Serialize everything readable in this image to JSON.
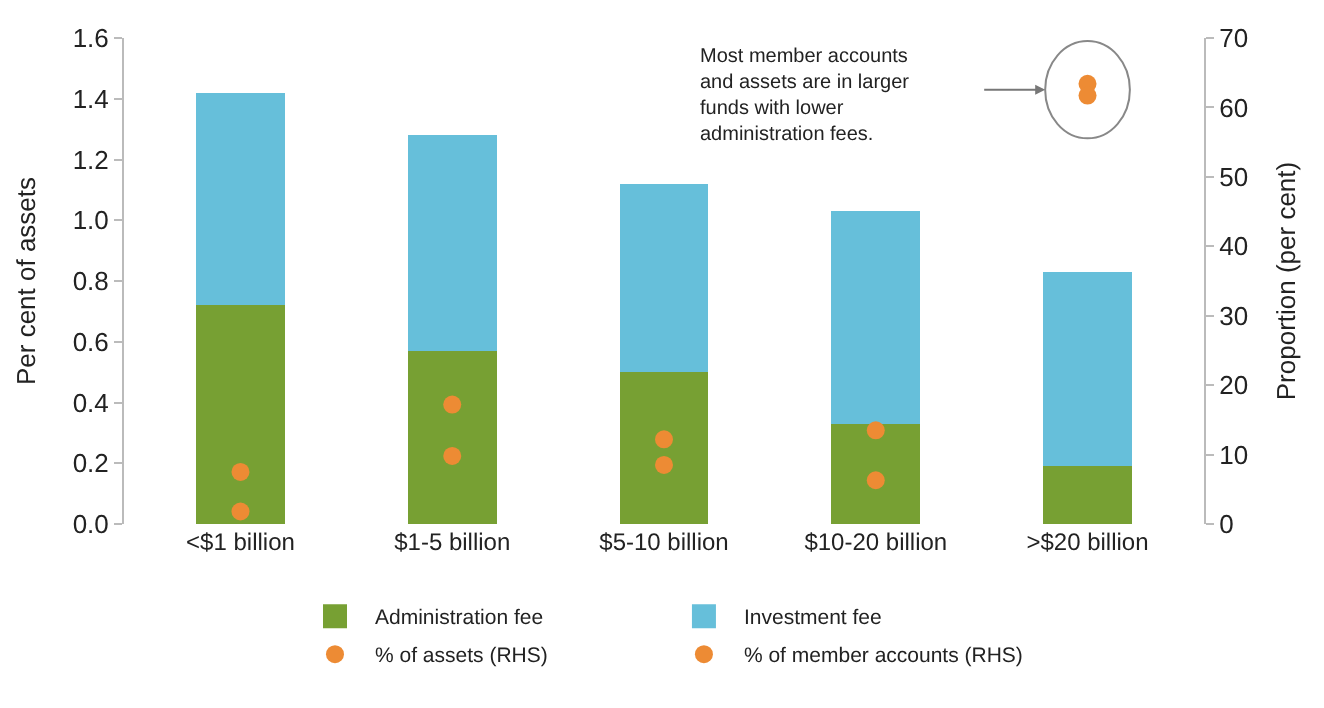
{
  "chart_data": {
    "type": "bar",
    "stacked": true,
    "categories": [
      "<$1 billion",
      "$1-5 billion",
      "$5-10 billion",
      "$10-20 billion",
      ">$20 billion"
    ],
    "ylabel": "Per cent of assets",
    "y2label": "Proportion (per cent)",
    "ylim": [
      0,
      1.6
    ],
    "yticks": [
      {
        "value": 0,
        "label": "0.0"
      },
      {
        "value": 0.2,
        "label": "0.2"
      },
      {
        "value": 0.4,
        "label": "0.4"
      },
      {
        "value": 0.6,
        "label": "0.6"
      },
      {
        "value": 0.8,
        "label": "0.8"
      },
      {
        "value": 1,
        "label": "1.0"
      },
      {
        "value": 1.2,
        "label": "1.2"
      },
      {
        "value": 1.4,
        "label": "1.4"
      },
      {
        "value": 1.6,
        "label": "1.6"
      }
    ],
    "y2lim": [
      0,
      70
    ],
    "y2ticks": [
      0,
      10,
      20,
      30,
      40,
      50,
      60,
      70
    ],
    "series": [
      {
        "name": "Administration fee",
        "color": "#77a033",
        "values": [
          0.72,
          0.57,
          0.5,
          0.33,
          0.19
        ]
      },
      {
        "name": "Investment fee",
        "color": "#66bfda",
        "values": [
          0.7,
          0.71,
          0.62,
          0.7,
          0.64
        ]
      },
      {
        "name": "% of assets (RHS)",
        "type": "scatter",
        "axis": "y2",
        "color": "#ed8b34",
        "values": [
          1.8,
          9.8,
          8.5,
          6.3,
          63.4
        ]
      },
      {
        "name": "% of member accounts (RHS)",
        "type": "scatter",
        "axis": "y2",
        "color": "#ed8b34",
        "values": [
          7.5,
          17.2,
          12.2,
          13.5,
          61.7
        ]
      }
    ],
    "annotations": [
      "Most member accounts\nand assets are in larger\nfunds with lower\nadministration fees."
    ],
    "legend": "bottom",
    "marker": "circle"
  }
}
